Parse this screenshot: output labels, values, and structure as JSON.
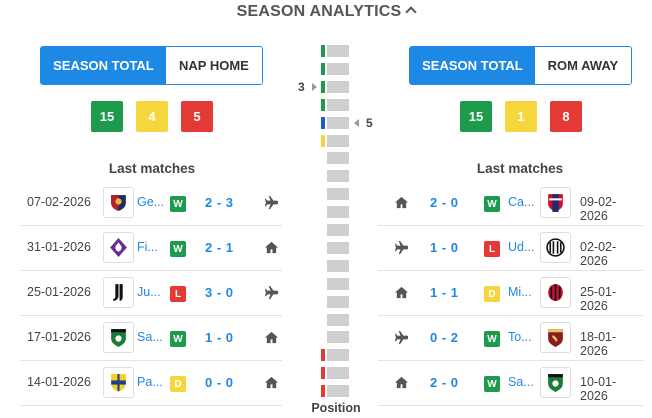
{
  "header": {
    "title": "SEASON ANALYTICS",
    "toggle_icon": "chevron-up-icon"
  },
  "left": {
    "tabs": [
      {
        "label": "SEASON TOTAL",
        "active": true
      },
      {
        "label": "NAP HOME",
        "active": false
      }
    ],
    "counts": {
      "wins": "15",
      "draws": "4",
      "losses": "5"
    },
    "last_matches_title": "Last matches",
    "matches": [
      {
        "date": "07-02-2026",
        "team": "Ge...",
        "crest": "genoa",
        "result": "W",
        "score": "2 - 3",
        "venue": "away"
      },
      {
        "date": "31-01-2026",
        "team": "Fi...",
        "crest": "fiorentina",
        "result": "W",
        "score": "2 - 1",
        "venue": "home"
      },
      {
        "date": "25-01-2026",
        "team": "Ju...",
        "crest": "juventus",
        "result": "L",
        "score": "3 - 0",
        "venue": "away"
      },
      {
        "date": "17-01-2026",
        "team": "Sa...",
        "crest": "sassuolo",
        "result": "W",
        "score": "1 - 0",
        "venue": "home"
      },
      {
        "date": "14-01-2026",
        "team": "Pa...",
        "crest": "parma",
        "result": "D",
        "score": "0 - 0",
        "venue": "home"
      }
    ]
  },
  "right": {
    "tabs": [
      {
        "label": "SEASON TOTAL",
        "active": true
      },
      {
        "label": "ROM AWAY",
        "active": false
      }
    ],
    "counts": {
      "wins": "15",
      "draws": "1",
      "losses": "8"
    },
    "last_matches_title": "Last matches",
    "matches": [
      {
        "date": "09-02-2026",
        "team": "Ca...",
        "crest": "cagliari",
        "result": "W",
        "score": "2 - 0",
        "venue": "home"
      },
      {
        "date": "02-02-2026",
        "team": "Ud...",
        "crest": "udinese",
        "result": "L",
        "score": "1 - 0",
        "venue": "away"
      },
      {
        "date": "25-01-2026",
        "team": "Mi...",
        "crest": "milan",
        "result": "D",
        "score": "1 - 1",
        "venue": "home"
      },
      {
        "date": "18-01-2026",
        "team": "To...",
        "crest": "torino",
        "result": "W",
        "score": "0 - 2",
        "venue": "away"
      },
      {
        "date": "10-01-2026",
        "team": "Sa...",
        "crest": "sassuolo",
        "result": "W",
        "score": "2 - 0",
        "venue": "home"
      }
    ]
  },
  "ladder": {
    "title": "Position",
    "team_count": 20,
    "left_position": "3",
    "right_position": "5",
    "zone_colors": [
      "#1e9a4c",
      "#1e9a4c",
      "#1e9a4c",
      "#1e9a4c",
      "#1e5bd6",
      "#f5d63d",
      "",
      "",
      "",
      "",
      "",
      "",
      "",
      "",
      "",
      "",
      "",
      "#e53935",
      "#e53935",
      "#e53935"
    ]
  },
  "colors": {
    "accent": "#1e88e5",
    "win": "#1e9a4c",
    "draw": "#f5d63d",
    "loss": "#e53935"
  }
}
